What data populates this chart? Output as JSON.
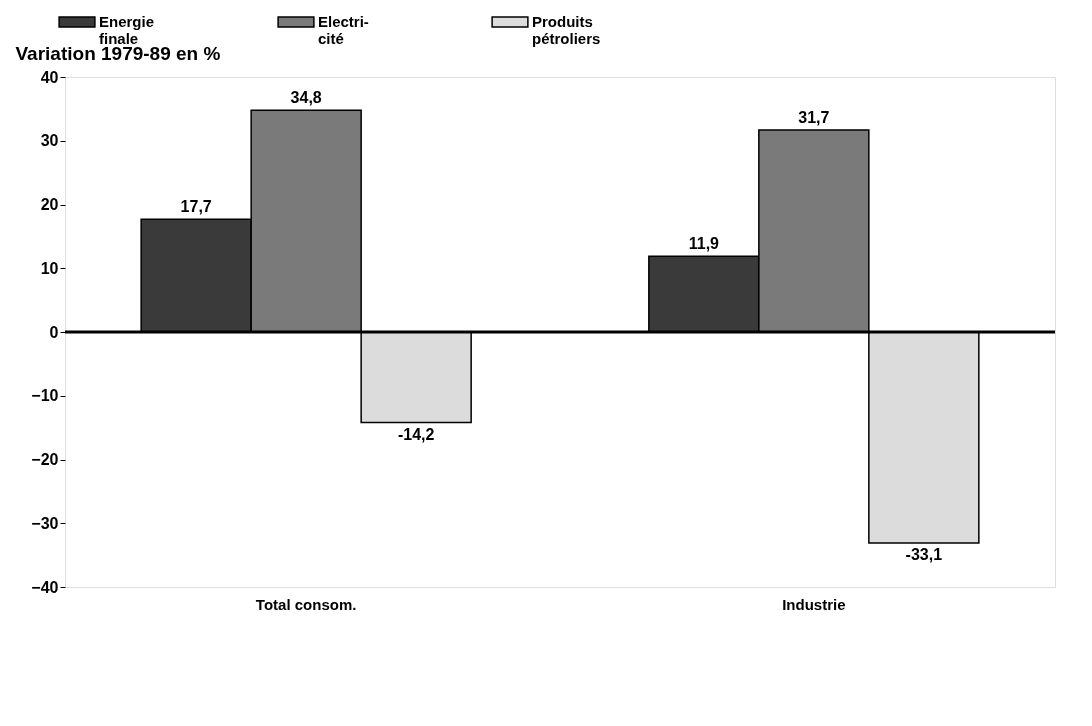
{
  "chart_data": {
    "type": "bar",
    "ylabel": "Variation 1979-89 en %",
    "categories": [
      "Total consom.",
      "Industrie"
    ],
    "series": [
      {
        "name": "Energie\nfinale",
        "color": "#3a3a3a",
        "values": [
          17.7,
          11.9
        ],
        "value_labels": [
          "17,7",
          "11,9"
        ]
      },
      {
        "name": "Electri-\ncité",
        "color": "#7a7a7a",
        "values": [
          34.8,
          31.7
        ],
        "value_labels": [
          "34,8",
          "31,7"
        ]
      },
      {
        "name": "Produits\npétroliers",
        "color": "#dcdcdc",
        "values": [
          -14.2,
          -33.1
        ],
        "value_labels": [
          "-14,2",
          "-33,1"
        ]
      }
    ],
    "ylim": [
      -40,
      40
    ],
    "yticks": [
      -40,
      -30,
      -20,
      -10,
      0,
      10,
      20,
      30,
      40
    ],
    "grid": false,
    "legend": "top",
    "ref_lines": [
      {
        "axis": "y",
        "value": 0
      }
    ]
  }
}
